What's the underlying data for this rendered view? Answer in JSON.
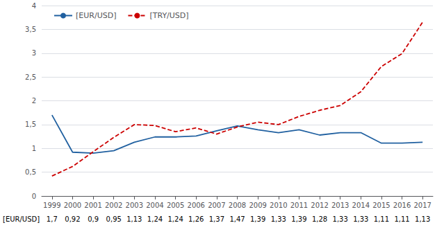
{
  "chart_data": {
    "type": "line",
    "x": [
      1999,
      2000,
      2001,
      2002,
      2003,
      2004,
      2005,
      2006,
      2007,
      2008,
      2009,
      2010,
      2011,
      2012,
      2013,
      2014,
      2015,
      2016,
      2017
    ],
    "xlim": [
      1998.5,
      2017.5
    ],
    "xticks": [
      1999,
      2000,
      2001,
      2002,
      2003,
      2004,
      2005,
      2006,
      2007,
      2008,
      2009,
      2010,
      2011,
      2012,
      2013,
      2014,
      2015,
      2016,
      2017
    ],
    "ylim": [
      0,
      4
    ],
    "yticks": [
      0,
      {
        "value": 0.5,
        "label": "0,5"
      },
      1,
      {
        "value": 1.5,
        "label": "1,5"
      },
      2,
      {
        "value": 2.5,
        "label": "2,5"
      },
      3,
      {
        "value": 3.5,
        "label": "3,5"
      },
      4
    ],
    "grid": true,
    "legend": "upper left",
    "table_label": "[EUR/USD]",
    "series": [
      {
        "name": "[EUR/USD]",
        "color": "#2060a0",
        "line_style": "solid",
        "values": [
          1.7,
          0.92,
          0.9,
          0.95,
          1.13,
          1.24,
          1.24,
          1.26,
          1.37,
          1.47,
          1.39,
          1.33,
          1.39,
          1.28,
          1.33,
          1.33,
          1.11,
          1.11,
          1.13
        ],
        "value_labels": [
          "1,7",
          "0,92",
          "0,9",
          "0,95",
          "1,13",
          "1,24",
          "1,24",
          "1,26",
          "1,37",
          "1,47",
          "1,39",
          "1,33",
          "1,39",
          "1,28",
          "1,33",
          "1,33",
          "1,11",
          "1,11",
          "1,13"
        ]
      },
      {
        "name": "[TRY/USD]",
        "color": "#cc0000",
        "line_style": "dashed",
        "values": [
          0.42,
          0.62,
          0.93,
          1.23,
          1.5,
          1.48,
          1.35,
          1.43,
          1.3,
          1.45,
          1.55,
          1.5,
          1.67,
          1.8,
          1.9,
          2.19,
          2.72,
          2.99,
          3.65
        ]
      }
    ]
  }
}
